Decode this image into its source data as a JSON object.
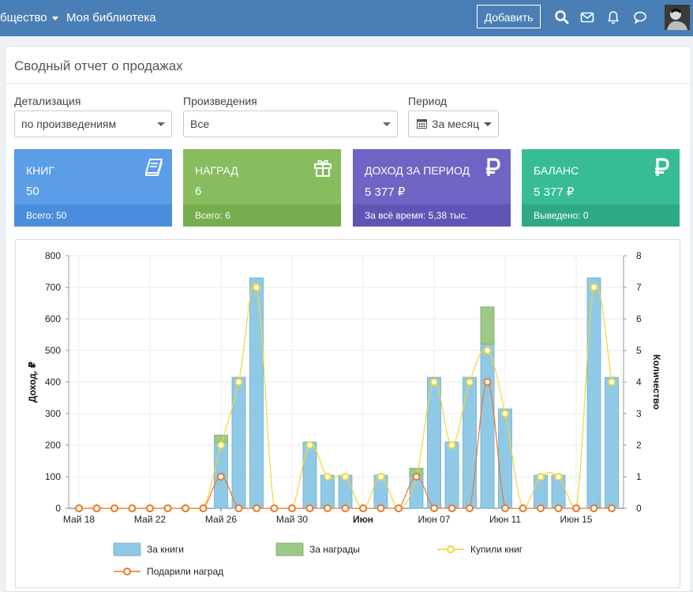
{
  "topbar": {
    "nav": [
      {
        "label": "бщество",
        "has_caret": true
      },
      {
        "label": "Моя библиотека",
        "has_caret": false
      }
    ],
    "add_label": "Добавить",
    "icons": [
      "search-icon",
      "mail-icon",
      "bell-icon",
      "chat-icon",
      "avatar"
    ]
  },
  "panel": {
    "title": "Сводный отчет о продажах",
    "filters": {
      "detail_label": "Детализация",
      "detail_value": "по произведениям",
      "works_label": "Произведения",
      "works_value": "Все",
      "period_label": "Период",
      "period_value": "За месяц"
    }
  },
  "stats": [
    {
      "title": "КНИГ",
      "value": "50",
      "footer": "Всего: 50",
      "icon": "book-icon",
      "color": "#5b9de6",
      "footer_color": "#4a8ddd"
    },
    {
      "title": "НАГРАД",
      "value": "6",
      "footer": "Всего: 6",
      "icon": "gift-icon",
      "color": "#87bc5f",
      "footer_color": "#76ad4f"
    },
    {
      "title": "ДОХОД ЗА ПЕРИОД",
      "value": "5 377 ₽",
      "footer": "За всё время: 5,38 тыс.",
      "icon": "ruble-icon",
      "color": "#6e64c4",
      "footer_color": "#5e55b6"
    },
    {
      "title": "БАЛАНС",
      "value": "5 377 ₽",
      "footer": "Выведено: 0",
      "icon": "ruble-icon",
      "color": "#37bc96",
      "footer_color": "#2ea985"
    }
  ],
  "chart_data": {
    "type": "bar",
    "categories": [
      "Май 18",
      "Май 19",
      "Май 20",
      "Май 21",
      "Май 22",
      "Май 23",
      "Май 24",
      "Май 25",
      "Май 26",
      "Май 27",
      "Май 28",
      "Май 29",
      "Май 30",
      "Май 31",
      "Июн 01",
      "Июн 02",
      "Июн 03",
      "Июн 04",
      "Июн 05",
      "Июн 06",
      "Июн 07",
      "Июн 08",
      "Июн 09",
      "Июн 10",
      "Июн 11",
      "Июн 12",
      "Июн 13",
      "Июн 14",
      "Июн 15",
      "Июн 16",
      "Июн 17"
    ],
    "tick_labels": [
      {
        "index": 0,
        "label": "Май 18",
        "bold": false
      },
      {
        "index": 4,
        "label": "Май 22",
        "bold": false
      },
      {
        "index": 8,
        "label": "Май 26",
        "bold": false
      },
      {
        "index": 12,
        "label": "Май 30",
        "bold": false
      },
      {
        "index": 16,
        "label": "Июн",
        "bold": true
      },
      {
        "index": 20,
        "label": "Июн 07",
        "bold": false
      },
      {
        "index": 24,
        "label": "Июн 11",
        "bold": false
      },
      {
        "index": 28,
        "label": "Июн 15",
        "bold": false
      }
    ],
    "ylabel": "Доход, ₽",
    "y2label": "Количество",
    "ylim": [
      0,
      800
    ],
    "y2lim": [
      0,
      8
    ],
    "yticks": [
      0,
      100,
      200,
      300,
      400,
      500,
      600,
      700,
      800
    ],
    "y2ticks": [
      0,
      1,
      2,
      3,
      4,
      5,
      6,
      7,
      8
    ],
    "grid": true,
    "legend_position": "bottom",
    "series": [
      {
        "name": "За книги",
        "type": "bar",
        "axis": "left",
        "color": "#8fc9e6",
        "values": [
          0,
          0,
          0,
          0,
          0,
          0,
          0,
          0,
          210,
          415,
          730,
          0,
          0,
          210,
          105,
          105,
          0,
          105,
          0,
          105,
          415,
          210,
          415,
          520,
          315,
          0,
          105,
          105,
          0,
          730,
          415
        ]
      },
      {
        "name": "За награды",
        "type": "bar",
        "axis": "left",
        "color": "#9cc987",
        "values": [
          0,
          0,
          0,
          0,
          0,
          0,
          0,
          0,
          22,
          0,
          0,
          0,
          0,
          0,
          0,
          0,
          0,
          0,
          0,
          22,
          0,
          0,
          0,
          118,
          0,
          0,
          0,
          0,
          0,
          0,
          0
        ]
      },
      {
        "name": "Купили книг",
        "type": "line",
        "axis": "right",
        "color": "#f2d633",
        "values": [
          0,
          0,
          0,
          0,
          0,
          0,
          0,
          0,
          2,
          4,
          7,
          0,
          0,
          2,
          1,
          1,
          0,
          1,
          0,
          1,
          4,
          2,
          4,
          5,
          3,
          0,
          1,
          1,
          0,
          7,
          4
        ]
      },
      {
        "name": "Подарили наград",
        "type": "line",
        "axis": "right",
        "color": "#e8782e",
        "values": [
          0,
          0,
          0,
          0,
          0,
          0,
          0,
          0,
          1,
          0,
          0,
          0,
          0,
          0,
          0,
          0,
          0,
          0,
          0,
          1,
          0,
          0,
          0,
          4,
          0,
          0,
          0,
          0,
          0,
          0,
          0
        ]
      }
    ]
  }
}
